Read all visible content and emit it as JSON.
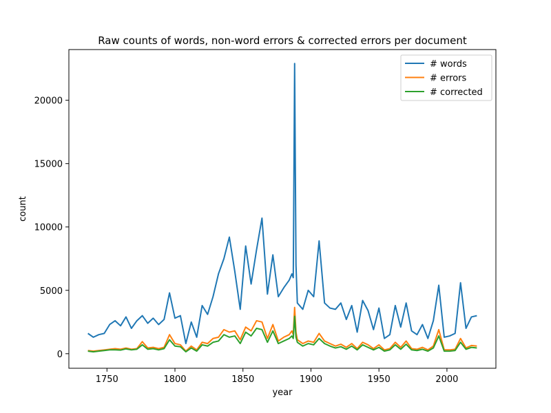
{
  "chart_data": {
    "type": "line",
    "title": "Raw counts of words, non-word errors & corrected errors per document",
    "xlabel": "year",
    "ylabel": "count",
    "xlim": [
      1722,
      2036
    ],
    "ylim": [
      -1150,
      24000
    ],
    "xticks": [
      1750,
      1800,
      1850,
      1900,
      1950,
      2000
    ],
    "yticks": [
      0,
      5000,
      10000,
      15000,
      20000
    ],
    "grid": false,
    "legend_position": "top-right",
    "x": [
      1736,
      1740,
      1744,
      1748,
      1752,
      1756,
      1760,
      1764,
      1768,
      1772,
      1776,
      1780,
      1784,
      1788,
      1792,
      1796,
      1800,
      1804,
      1808,
      1812,
      1816,
      1820,
      1824,
      1828,
      1832,
      1836,
      1840,
      1844,
      1848,
      1852,
      1856,
      1860,
      1864,
      1868,
      1872,
      1876,
      1880,
      1884,
      1886,
      1887,
      1888,
      1889,
      1890,
      1894,
      1898,
      1902,
      1906,
      1910,
      1914,
      1918,
      1922,
      1926,
      1930,
      1934,
      1938,
      1942,
      1946,
      1950,
      1954,
      1958,
      1962,
      1966,
      1970,
      1974,
      1978,
      1982,
      1986,
      1990,
      1994,
      1998,
      2002,
      2006,
      2010,
      2014,
      2018,
      2022
    ],
    "series": [
      {
        "name": "# words",
        "color": "#1f77b4",
        "values": [
          1600,
          1300,
          1500,
          1600,
          2300,
          2600,
          2200,
          2900,
          2000,
          2600,
          3000,
          2400,
          2800,
          2300,
          2700,
          4800,
          2800,
          3000,
          800,
          2500,
          1300,
          3800,
          3100,
          4500,
          6300,
          7500,
          9200,
          6500,
          3500,
          8500,
          5500,
          8200,
          10700,
          4700,
          7800,
          4500,
          5200,
          5800,
          6300,
          6000,
          22900,
          7000,
          4000,
          3500,
          5000,
          4500,
          8900,
          4000,
          3600,
          3500,
          4000,
          2700,
          3800,
          1700,
          4200,
          3400,
          1900,
          3600,
          1200,
          1500,
          3800,
          2100,
          4000,
          1800,
          1500,
          2300,
          1200,
          2600,
          5400,
          1300,
          1400,
          1600,
          5600,
          2000,
          2900,
          3000
        ]
      },
      {
        "name": "# errors",
        "color": "#ff7f0e",
        "values": [
          250,
          200,
          250,
          300,
          350,
          400,
          350,
          450,
          350,
          400,
          950,
          450,
          500,
          400,
          500,
          1500,
          800,
          700,
          200,
          600,
          300,
          900,
          800,
          1200,
          1300,
          1900,
          1700,
          1800,
          1100,
          2100,
          1800,
          2600,
          2500,
          1200,
          2300,
          1000,
          1300,
          1500,
          1800,
          1500,
          3650,
          1700,
          1100,
          800,
          1000,
          900,
          1600,
          1000,
          800,
          600,
          750,
          500,
          800,
          400,
          900,
          700,
          400,
          700,
          300,
          400,
          900,
          500,
          1000,
          400,
          350,
          500,
          300,
          600,
          1900,
          300,
          300,
          350,
          1200,
          450,
          650,
          600
        ]
      },
      {
        "name": "# corrected",
        "color": "#2ca02c",
        "values": [
          200,
          150,
          200,
          250,
          300,
          300,
          280,
          380,
          300,
          350,
          700,
          350,
          400,
          300,
          400,
          1100,
          600,
          550,
          150,
          450,
          200,
          700,
          600,
          900,
          1000,
          1500,
          1300,
          1400,
          800,
          1700,
          1400,
          2000,
          1900,
          900,
          1800,
          800,
          1000,
          1200,
          1400,
          1200,
          2950,
          1300,
          900,
          600,
          800,
          700,
          1200,
          800,
          600,
          450,
          550,
          350,
          600,
          300,
          700,
          500,
          300,
          500,
          200,
          300,
          700,
          350,
          750,
          300,
          250,
          350,
          200,
          450,
          1400,
          200,
          200,
          250,
          900,
          350,
          500,
          450
        ]
      }
    ]
  }
}
